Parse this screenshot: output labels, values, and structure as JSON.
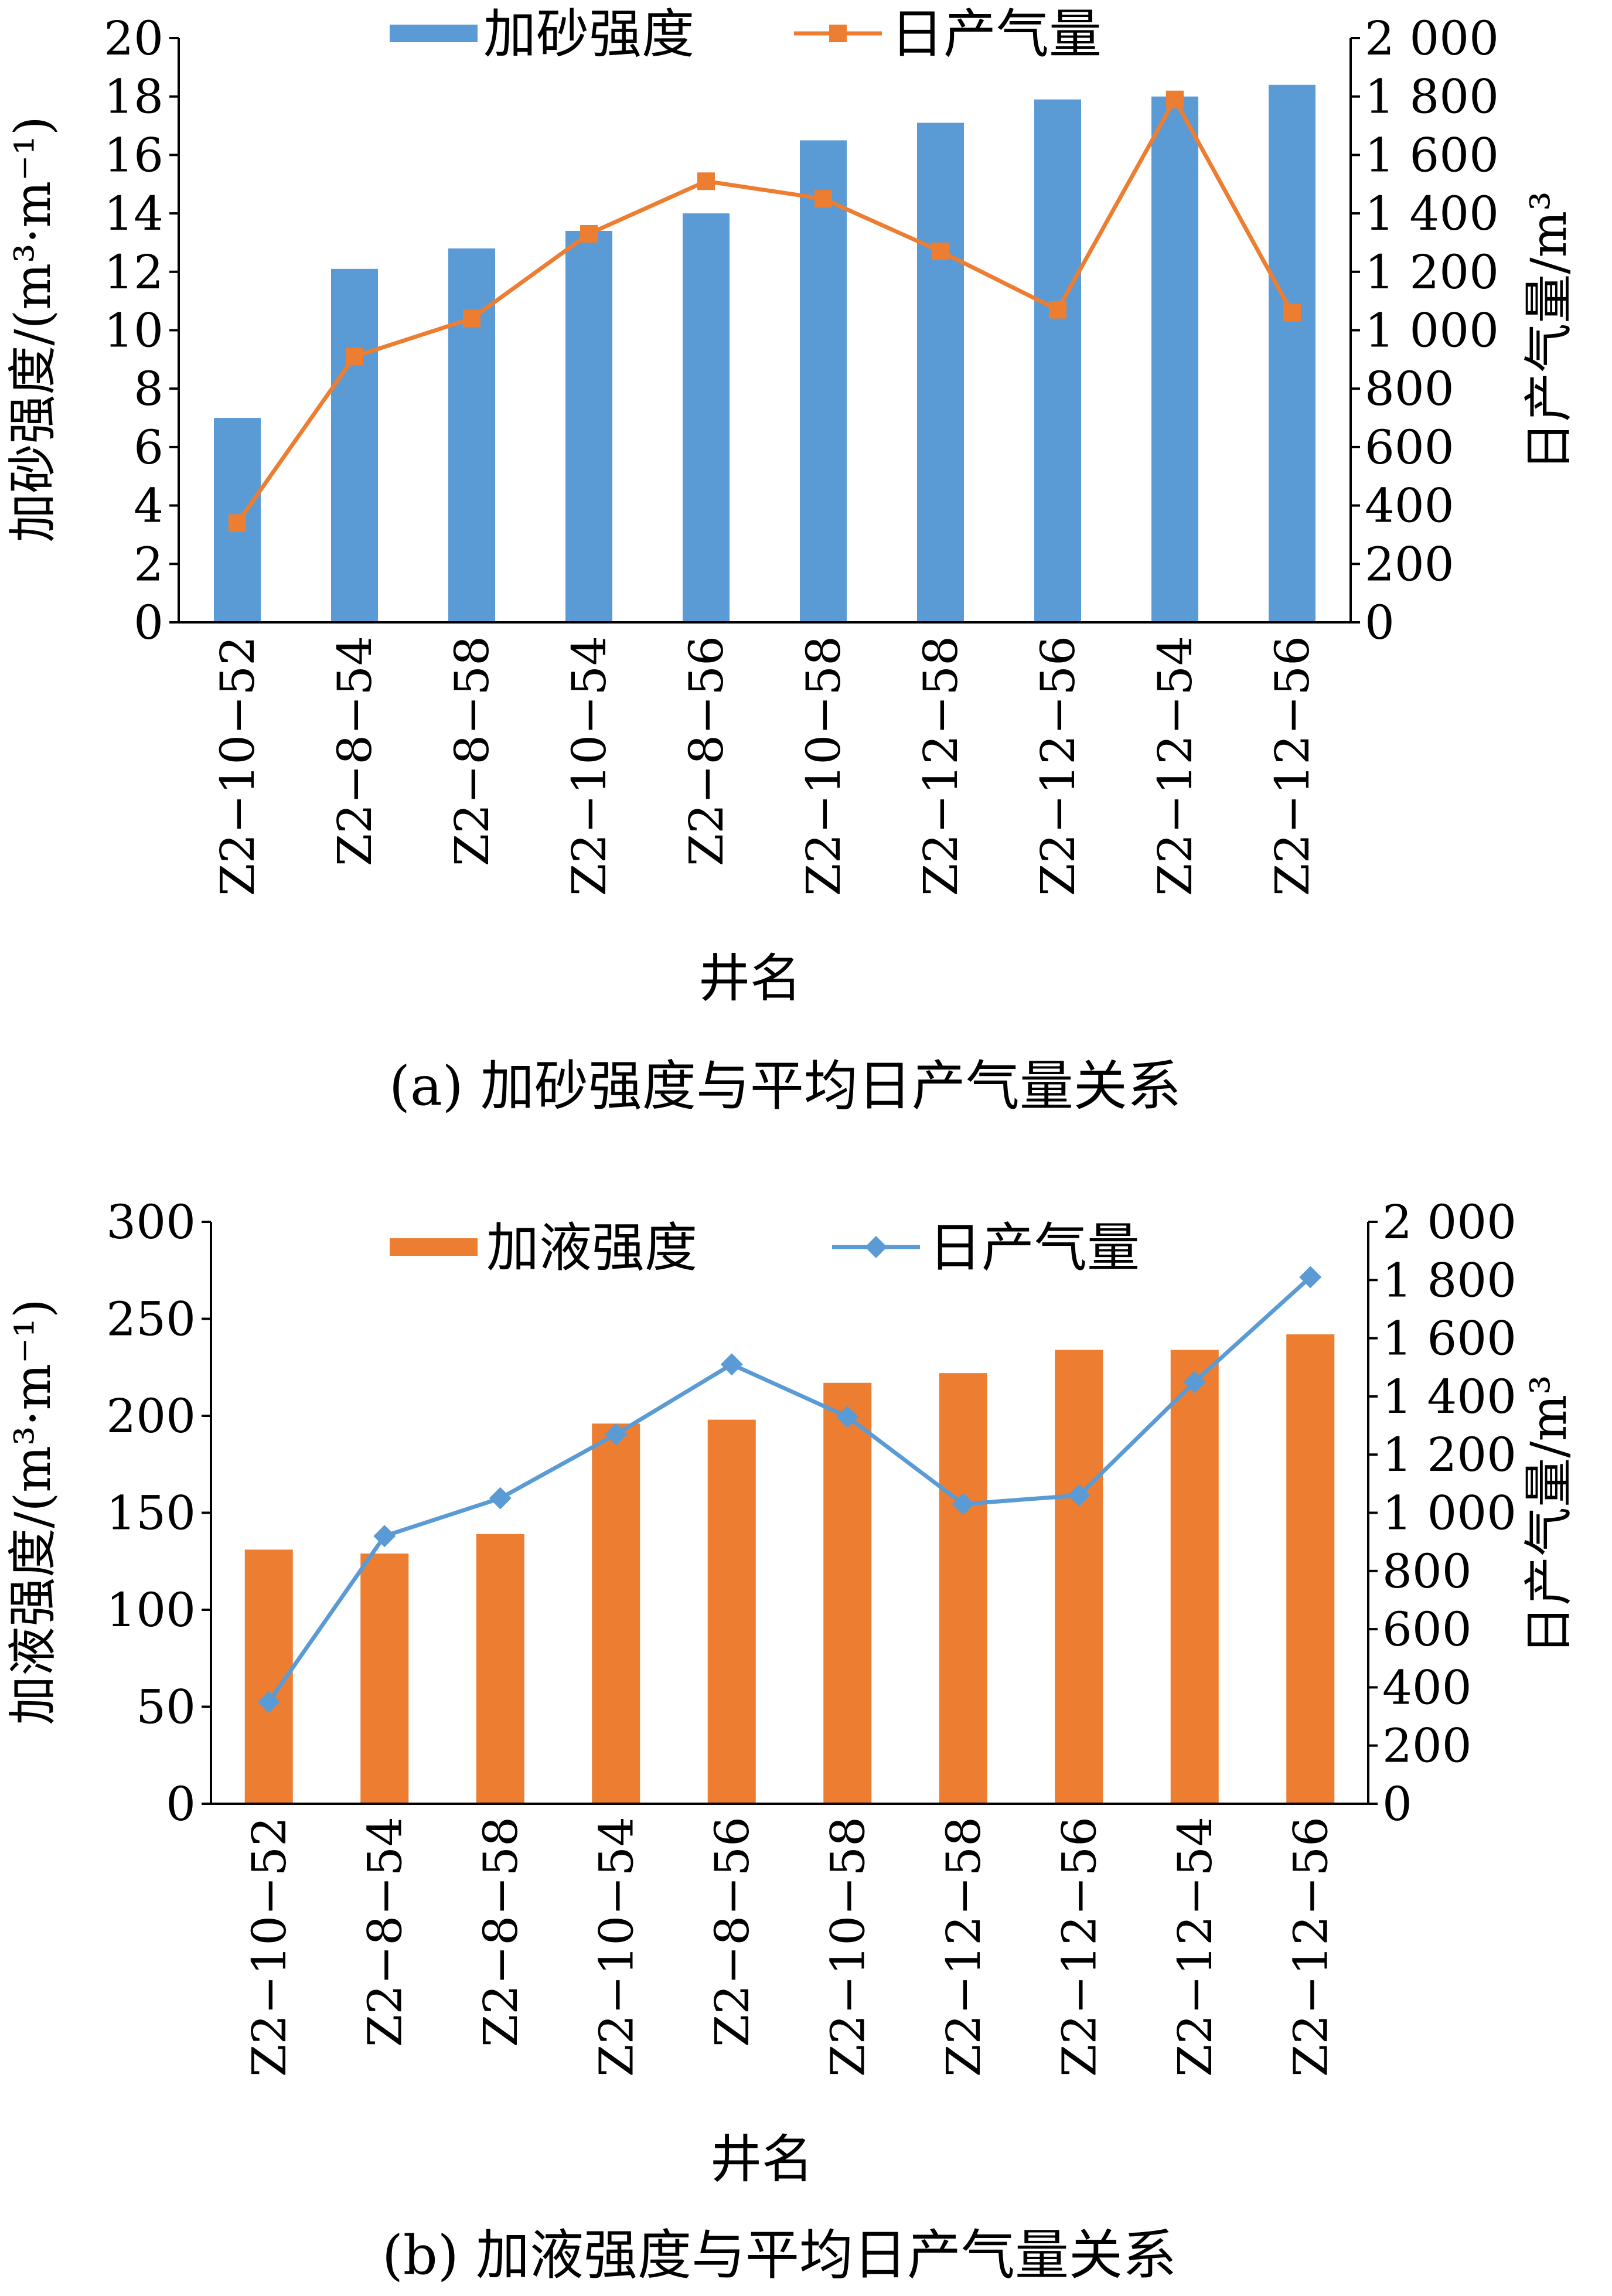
{
  "chart_data": [
    {
      "type": "bar",
      "caption": "(a) 加砂强度与平均日产气量关系",
      "xlabel": "井名",
      "ylabel": "加砂强度/(m³·m⁻¹)",
      "y2label": "日产气量/m³",
      "categories": [
        "Z2−10−52",
        "Z2−8−54",
        "Z2−8−58",
        "Z2−10−54",
        "Z2−8−56",
        "Z2−10−58",
        "Z2−12−58",
        "Z2−12−56",
        "Z2−12−54",
        "Z2−12−56"
      ],
      "ylim": [
        0,
        20
      ],
      "yticks": [
        "0",
        "2",
        "4",
        "6",
        "8",
        "10",
        "12",
        "14",
        "16",
        "18",
        "20"
      ],
      "y2lim": [
        0,
        2000
      ],
      "y2ticks": [
        "0",
        "200",
        "400",
        "600",
        "800",
        "1 000",
        "1 200",
        "1 400",
        "1 600",
        "1 800",
        "2 000"
      ],
      "legend_position": "top-center",
      "grid": false,
      "series": [
        {
          "name": "加砂强度",
          "kind": "bar",
          "axis": "left",
          "color": "#5b9bd5",
          "values": [
            7.0,
            12.1,
            12.8,
            13.4,
            14.0,
            16.5,
            17.1,
            17.9,
            18.0,
            18.4
          ]
        },
        {
          "name": "日产气量",
          "kind": "line",
          "axis": "right",
          "marker": "square",
          "color": "#ed7d31",
          "values": [
            340,
            910,
            1040,
            1330,
            1510,
            1450,
            1270,
            1070,
            1790,
            1060
          ]
        }
      ]
    },
    {
      "type": "bar",
      "caption": "(b) 加液强度与平均日产气量关系",
      "xlabel": "井名",
      "ylabel": "加液强度/(m³·m⁻¹)",
      "y2label": "日产气量/m³",
      "categories": [
        "Z2−10−52",
        "Z2−8−54",
        "Z2−8−58",
        "Z2−10−54",
        "Z2−8−56",
        "Z2−10−58",
        "Z2−12−58",
        "Z2−12−56",
        "Z2−12−54",
        "Z2−12−56"
      ],
      "ylim": [
        0,
        300
      ],
      "yticks": [
        "0",
        "50",
        "100",
        "150",
        "200",
        "250",
        "300"
      ],
      "y2lim": [
        0,
        2000
      ],
      "y2ticks": [
        "0",
        "200",
        "400",
        "600",
        "800",
        "1 000",
        "1 200",
        "1 400",
        "1 600",
        "1 800",
        "2 000"
      ],
      "legend_position": "top-center",
      "grid": false,
      "series": [
        {
          "name": "加液强度",
          "kind": "bar",
          "axis": "left",
          "color": "#ed7d31",
          "values": [
            131,
            129,
            139,
            196,
            198,
            217,
            222,
            234,
            234,
            242
          ]
        },
        {
          "name": "日产气量",
          "kind": "line",
          "axis": "right",
          "marker": "diamond",
          "color": "#5b9bd5",
          "values": [
            350,
            920,
            1050,
            1270,
            1510,
            1330,
            1030,
            1060,
            1450,
            1810
          ]
        }
      ]
    }
  ]
}
